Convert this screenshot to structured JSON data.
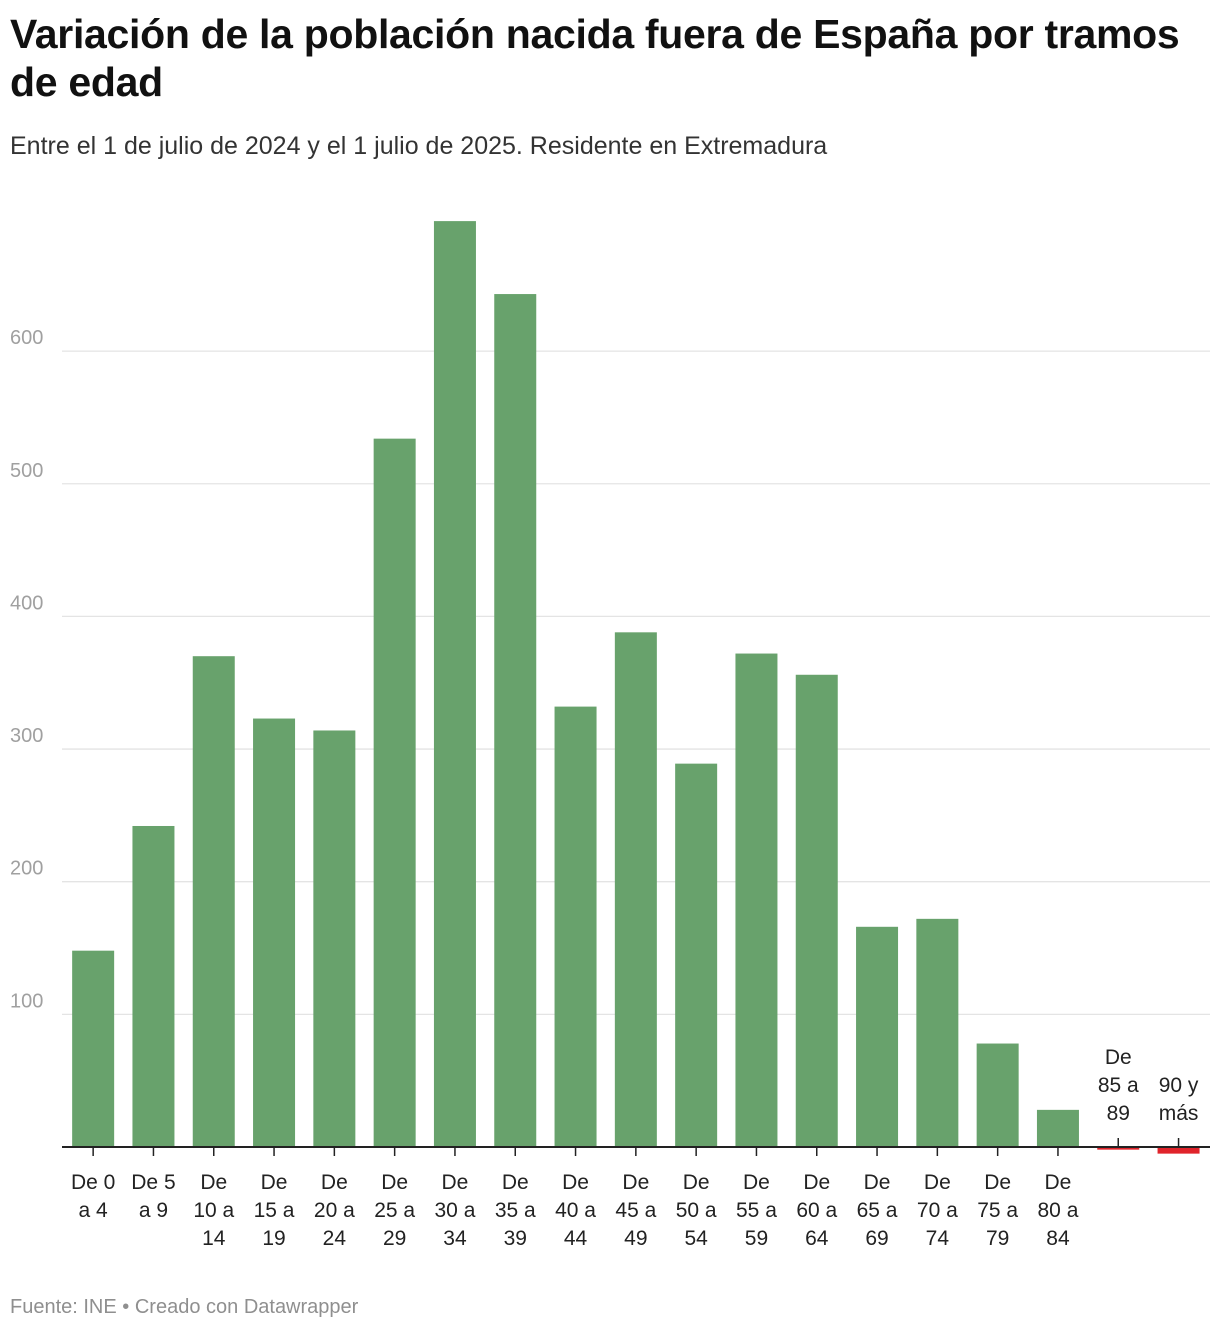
{
  "header": {
    "title": "Variación de la población nacida fuera de España por tramos de edad",
    "subtitle": "Entre el 1 de julio de 2024 y el 1 julio de 2025. Residente en Extremadura"
  },
  "footer": {
    "source": "Fuente: INE",
    "separator": "•",
    "credit": "Creado con Datawrapper"
  },
  "colors": {
    "positive": "#68a26c",
    "negative": "#e0242b",
    "grid": "#e4e4e4",
    "axis": "#222222"
  },
  "chart_data": {
    "type": "bar",
    "title": "Variación de la población nacida fuera de España por tramos de edad",
    "subtitle": "Entre el 1 de julio de 2024 y el 1 julio de 2025. Residente en Extremadura",
    "xlabel": "",
    "ylabel": "",
    "ylim": [
      -5,
      700
    ],
    "yticks": [
      100,
      200,
      300,
      400,
      500,
      600
    ],
    "grid": true,
    "categories": [
      [
        "De 0",
        "a 4"
      ],
      [
        "De 5",
        "a 9"
      ],
      [
        "De",
        "10 a",
        "14"
      ],
      [
        "De",
        "15 a",
        "19"
      ],
      [
        "De",
        "20 a",
        "24"
      ],
      [
        "De",
        "25 a",
        "29"
      ],
      [
        "De",
        "30 a",
        "34"
      ],
      [
        "De",
        "35 a",
        "39"
      ],
      [
        "De",
        "40 a",
        "44"
      ],
      [
        "De",
        "45 a",
        "49"
      ],
      [
        "De",
        "50 a",
        "54"
      ],
      [
        "De",
        "55 a",
        "59"
      ],
      [
        "De",
        "60 a",
        "64"
      ],
      [
        "De",
        "65 a",
        "69"
      ],
      [
        "De",
        "70 a",
        "74"
      ],
      [
        "De",
        "75 a",
        "79"
      ],
      [
        "De",
        "80 a",
        "84"
      ],
      [
        "De",
        "85 a",
        "89"
      ],
      [
        "90 y",
        "más"
      ]
    ],
    "values": [
      148,
      242,
      370,
      323,
      314,
      534,
      698,
      643,
      332,
      388,
      289,
      372,
      356,
      166,
      172,
      78,
      28,
      -2,
      -5
    ]
  }
}
